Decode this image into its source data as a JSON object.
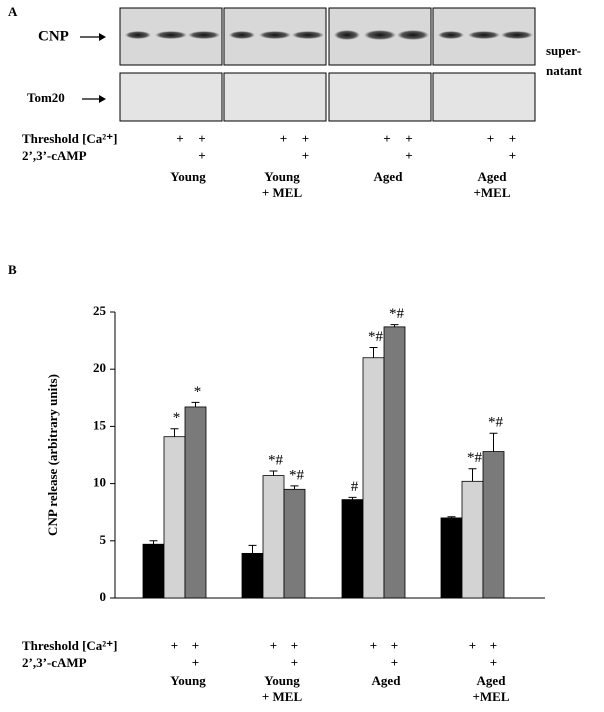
{
  "panel_a": {
    "label": "A",
    "rows": [
      "CNP",
      "Tom20"
    ],
    "side_label": [
      "super-",
      "natant"
    ],
    "treatments": [
      {
        "label": "Threshold [Ca²⁺]",
        "marks": [
          null,
          "+",
          "+",
          null,
          "+",
          "+",
          null,
          "+",
          "+",
          null,
          "+",
          "+"
        ]
      },
      {
        "label": "2’,3’-cAMP",
        "marks": [
          null,
          null,
          "+",
          null,
          null,
          "+",
          null,
          null,
          "+",
          null,
          null,
          "+"
        ]
      }
    ],
    "groups": [
      [
        "Young"
      ],
      [
        "Young",
        "+ MEL"
      ],
      [
        "Aged"
      ],
      [
        "Aged",
        "+MEL"
      ]
    ]
  },
  "chart_data": {
    "type": "bar",
    "panel_label": "B",
    "ylabel": "CNP release (arbitrary units)",
    "categories": [
      [
        "Young"
      ],
      [
        "Young",
        "+ MEL"
      ],
      [
        "Aged"
      ],
      [
        "Aged",
        "+MEL"
      ]
    ],
    "series": [
      {
        "color": "#000000",
        "values": [
          4.7,
          3.9,
          8.6,
          7.0
        ],
        "errors": [
          0.3,
          0.7,
          0.2,
          0.1
        ],
        "annotations": [
          null,
          null,
          "#",
          null
        ]
      },
      {
        "color": "#d3d3d3",
        "values": [
          14.1,
          10.7,
          21.0,
          10.2
        ],
        "errors": [
          0.7,
          0.4,
          0.9,
          1.1
        ],
        "annotations": [
          "*",
          "*#",
          "*#",
          "*#"
        ]
      },
      {
        "color": "#7a7a7a",
        "values": [
          16.7,
          9.5,
          23.7,
          12.8
        ],
        "errors": [
          0.4,
          0.3,
          0.2,
          1.6
        ],
        "annotations": [
          "*",
          "*#",
          "*#",
          "*#"
        ]
      }
    ],
    "treatments": [
      {
        "label": "Threshold [Ca²⁺]",
        "marks": [
          null,
          "+",
          "+",
          null,
          "+",
          "+",
          null,
          "+",
          "+",
          null,
          "+",
          "+"
        ]
      },
      {
        "label": "2’,3’-cAMP",
        "marks": [
          null,
          null,
          "+",
          null,
          null,
          "+",
          null,
          null,
          "+",
          null,
          null,
          "+"
        ]
      }
    ],
    "ylim": [
      0,
      25
    ],
    "yticks": [
      0,
      5,
      10,
      15,
      20,
      25
    ]
  }
}
